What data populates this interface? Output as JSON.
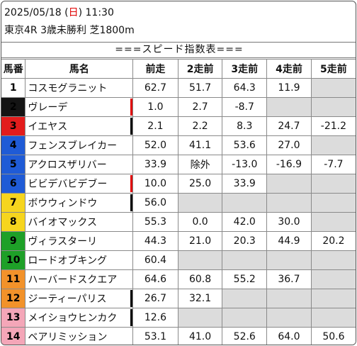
{
  "header": {
    "date_prefix": "2025/05/18 (",
    "weekday": "日",
    "date_suffix": ") 11:30",
    "race": "東京4R 3歳未勝利 芝1800m"
  },
  "title": "===スピード指数表===",
  "columns": [
    "馬番",
    "馬名",
    "前走",
    "2走前",
    "3走前",
    "4走前",
    "5走前"
  ],
  "colors": {
    "white": "#ffffff",
    "black": "#141414",
    "red": "#e21c1c",
    "blue": "#1f5bd6",
    "yellow": "#f6d51e",
    "green": "#1ea028",
    "orange": "#f2922a",
    "pink": "#f4a6b8",
    "empty_cell": "#dcdcdc",
    "mark_red": "#e00000",
    "mark_black": "#000000"
  },
  "rows": [
    {
      "num": "1",
      "name": "コスモグラニット",
      "gate": "white",
      "mark": "",
      "v": [
        "62.7",
        "51.7",
        "64.3",
        "11.9",
        ""
      ]
    },
    {
      "num": "2",
      "name": "ヴレーデ",
      "gate": "black",
      "mark": "red",
      "v": [
        "1.0",
        "2.7",
        "-8.7",
        "",
        ""
      ]
    },
    {
      "num": "3",
      "name": "イエヤス",
      "gate": "red",
      "mark": "black",
      "v": [
        "2.1",
        "2.2",
        "8.3",
        "24.7",
        "-21.2"
      ]
    },
    {
      "num": "4",
      "name": "フェンスブレイカー",
      "gate": "blue",
      "mark": "",
      "v": [
        "52.0",
        "41.1",
        "53.6",
        "27.0",
        ""
      ]
    },
    {
      "num": "5",
      "name": "アクロスザリバー",
      "gate": "blue",
      "mark": "",
      "v": [
        "33.9",
        "除外",
        "-13.0",
        "-16.9",
        "-7.7"
      ]
    },
    {
      "num": "6",
      "name": "ビビデバビデブー",
      "gate": "blue",
      "mark": "red",
      "v": [
        "10.0",
        "25.0",
        "33.9",
        "",
        ""
      ]
    },
    {
      "num": "7",
      "name": "ボウウィンドウ",
      "gate": "yellow",
      "mark": "black",
      "v": [
        "56.0",
        "",
        "",
        "",
        ""
      ]
    },
    {
      "num": "8",
      "name": "バイオマックス",
      "gate": "yellow",
      "mark": "",
      "v": [
        "55.3",
        "0.0",
        "42.0",
        "30.0",
        ""
      ]
    },
    {
      "num": "9",
      "name": "ヴィラスターリ",
      "gate": "green",
      "mark": "",
      "v": [
        "44.3",
        "21.0",
        "20.3",
        "44.9",
        "20.2"
      ]
    },
    {
      "num": "10",
      "name": "ロードオブキング",
      "gate": "green",
      "mark": "",
      "v": [
        "60.4",
        "",
        "",
        "",
        ""
      ]
    },
    {
      "num": "11",
      "name": "ハーバードスクエア",
      "gate": "orange",
      "mark": "",
      "v": [
        "64.6",
        "60.8",
        "55.2",
        "36.7",
        ""
      ]
    },
    {
      "num": "12",
      "name": "ジーティーパリス",
      "gate": "orange",
      "mark": "black",
      "v": [
        "26.7",
        "32.1",
        "",
        "",
        ""
      ]
    },
    {
      "num": "13",
      "name": "メイショウヒンカク",
      "gate": "pink",
      "mark": "black",
      "v": [
        "12.6",
        "",
        "",
        "",
        ""
      ]
    },
    {
      "num": "14",
      "name": "ベアリミッション",
      "gate": "pink",
      "mark": "",
      "v": [
        "53.1",
        "41.0",
        "52.6",
        "64.0",
        "50.6"
      ]
    }
  ]
}
